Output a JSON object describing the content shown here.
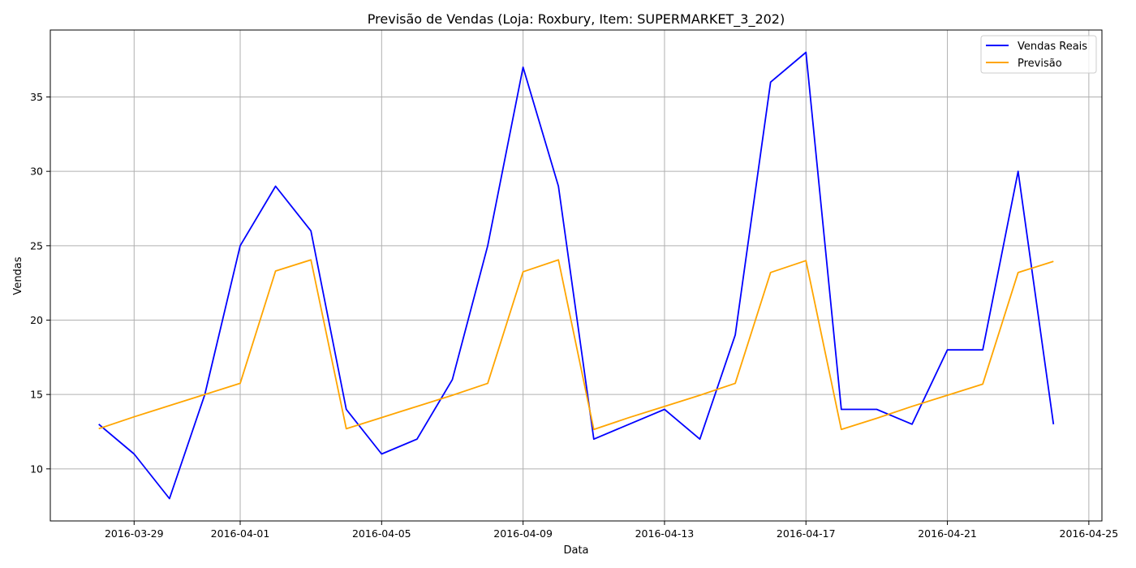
{
  "chart_data": {
    "type": "line",
    "title": "Previsão de Vendas (Loja: Roxbury, Item: SUPERMARKET_3_202)",
    "xlabel": "Data",
    "ylabel": "Vendas",
    "x": [
      "2016-03-28",
      "2016-03-29",
      "2016-03-30",
      "2016-03-31",
      "2016-04-01",
      "2016-04-02",
      "2016-04-03",
      "2016-04-04",
      "2016-04-05",
      "2016-04-06",
      "2016-04-07",
      "2016-04-08",
      "2016-04-09",
      "2016-04-10",
      "2016-04-11",
      "2016-04-12",
      "2016-04-13",
      "2016-04-14",
      "2016-04-15",
      "2016-04-16",
      "2016-04-17",
      "2016-04-18",
      "2016-04-19",
      "2016-04-20",
      "2016-04-21",
      "2016-04-22",
      "2016-04-23",
      "2016-04-24"
    ],
    "series": [
      {
        "name": "Vendas Reais",
        "color": "#0000ff",
        "values": [
          13,
          11,
          8,
          15,
          25,
          29,
          26,
          14,
          11,
          12,
          16,
          25,
          37,
          29,
          12,
          13,
          14,
          12,
          19,
          36,
          38,
          14,
          14,
          13,
          18,
          18,
          30,
          13
        ]
      },
      {
        "name": "Previsão",
        "color": "#ffa500",
        "values": [
          12.7,
          13.5,
          14.25,
          15.0,
          15.75,
          23.3,
          24.05,
          12.7,
          13.45,
          14.2,
          14.95,
          15.75,
          23.25,
          24.05,
          12.65,
          13.45,
          14.2,
          14.95,
          15.75,
          23.2,
          24.0,
          12.65,
          13.4,
          14.2,
          14.95,
          15.7,
          23.2,
          23.95
        ]
      }
    ],
    "xlim": [
      "2016-03-26.63",
      "2016-04-25.37"
    ],
    "ylim": [
      6.5,
      39.5
    ],
    "xticks": [
      "2016-03-29",
      "2016-04-01",
      "2016-04-05",
      "2016-04-09",
      "2016-04-13",
      "2016-04-17",
      "2016-04-21",
      "2016-04-25"
    ],
    "yticks": [
      10,
      15,
      20,
      25,
      30,
      35
    ],
    "grid": true,
    "legend_position": "top-right"
  }
}
